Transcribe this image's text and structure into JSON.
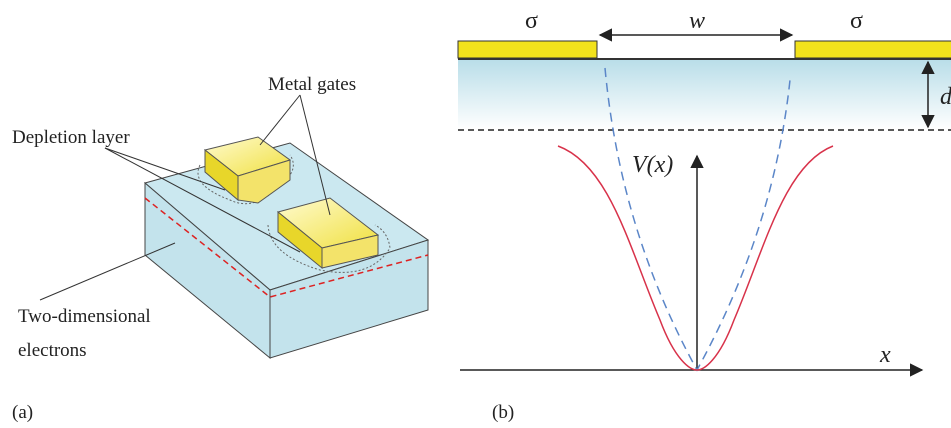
{
  "panel_a": {
    "labels": {
      "metal_gates": "Metal gates",
      "depletion_layer": "Depletion layer",
      "two_dimensional": "Two-dimensional",
      "electrons": "electrons"
    },
    "caption": "(a)"
  },
  "panel_b": {
    "sigma_left": "σ",
    "sigma_right": "σ",
    "width": "w",
    "depth": "d",
    "potential": "V(x)",
    "x_axis": "x",
    "caption": "(b)"
  }
}
